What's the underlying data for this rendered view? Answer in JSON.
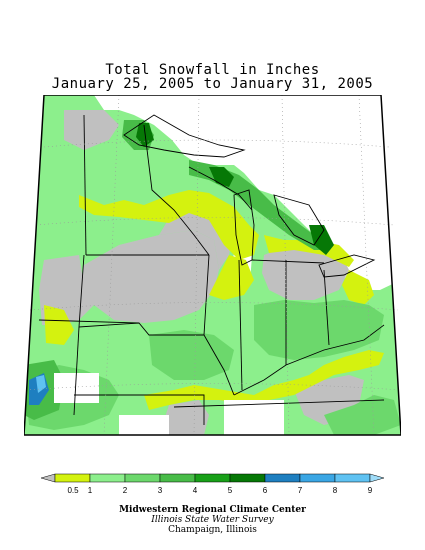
{
  "title": {
    "line1": "Total Snowfall in Inches",
    "line2": "January 25, 2005 to January 31, 2005"
  },
  "legend": {
    "unit": "inches",
    "bins": [
      {
        "label": "0.5",
        "color": "#c0c0c0"
      },
      {
        "label": "1",
        "color": "#d4f20f"
      },
      {
        "label": "2",
        "color": "#8cef8c"
      },
      {
        "label": "3",
        "color": "#6cd86c"
      },
      {
        "label": "4",
        "color": "#48bc48"
      },
      {
        "label": "5",
        "color": "#18a018"
      },
      {
        "label": "6",
        "color": "#067806"
      },
      {
        "label": "7",
        "color": "#1e7fc0"
      },
      {
        "label": "8",
        "color": "#3aa6e4"
      },
      {
        "label": "9",
        "color": "#5fc2f2"
      }
    ],
    "top_color": "#9fdcf8",
    "labels": [
      "0.5",
      "1",
      "2",
      "3",
      "4",
      "5",
      "6",
      "7",
      "8",
      "9"
    ]
  },
  "credits": {
    "line1": "Midwestern Regional Climate Center",
    "line2": "Illinois State Water Survey",
    "line3": "Champaign, Illinois"
  },
  "colors": {
    "no_snow": "#ffffff",
    "trace": "#c0c0c0",
    "light_yellow": "#d4f20f",
    "light_green": "#8cef8c",
    "medium_green": "#6cd86c",
    "green": "#48bc48",
    "dark_green": "#067806",
    "blue": "#1e7fc0",
    "light_blue": "#5fc2f2",
    "state_border": "#000000"
  }
}
